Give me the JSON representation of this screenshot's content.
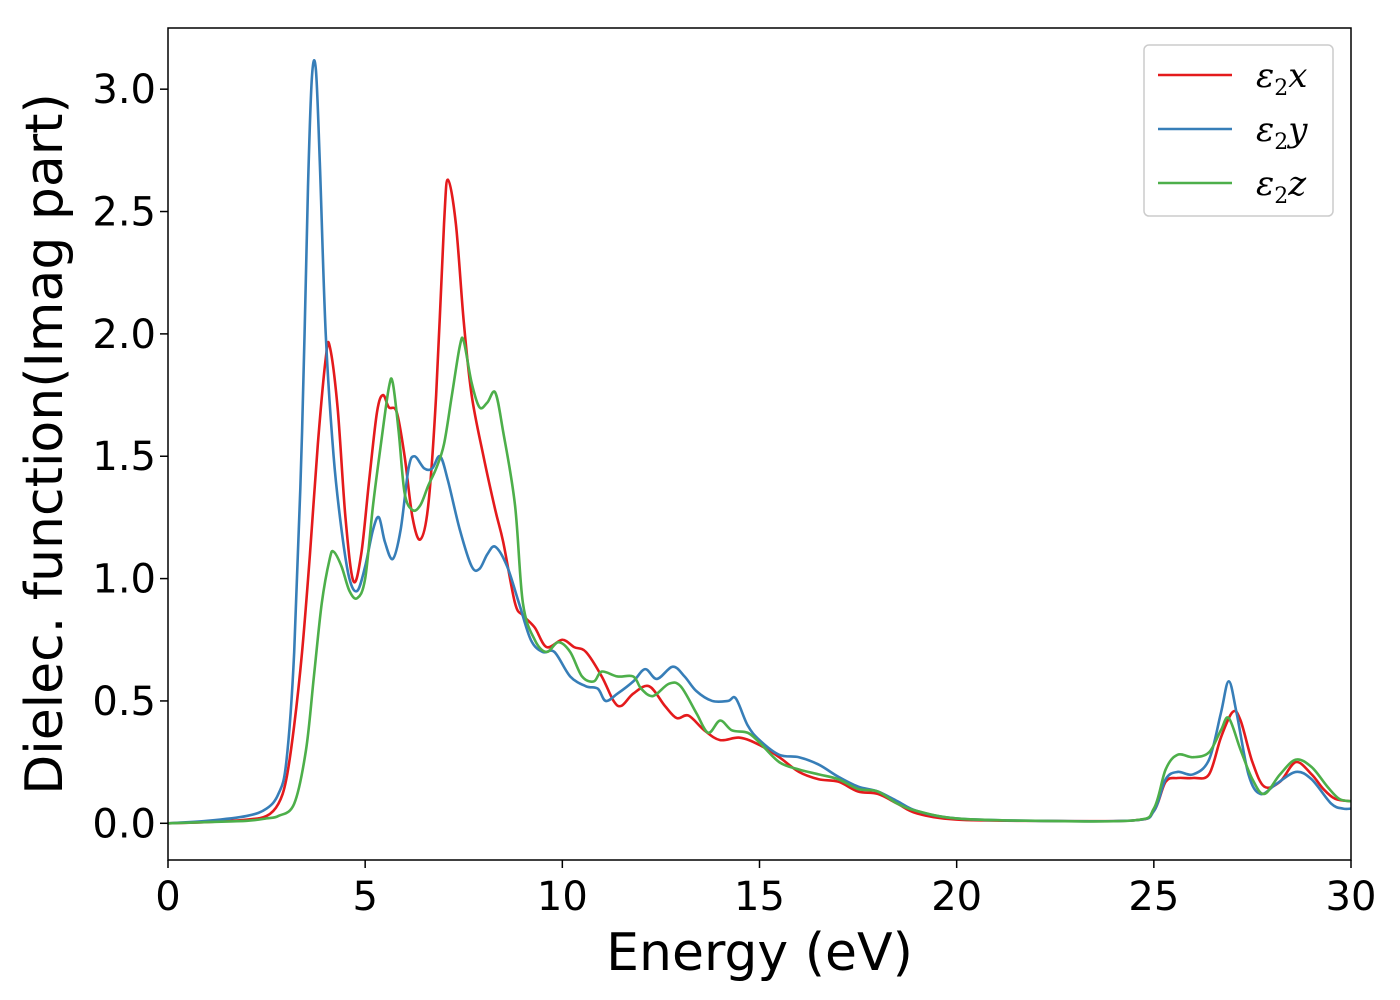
{
  "chart_data": {
    "type": "line",
    "xlabel": "Energy (eV)",
    "ylabel": "Dielec. function(Imag part)",
    "xlim": [
      0,
      30
    ],
    "ylim": [
      -0.15,
      3.25
    ],
    "xticks": [
      0,
      5,
      10,
      15,
      20,
      25,
      30
    ],
    "xtick_labels": [
      "0",
      "5",
      "10",
      "15",
      "20",
      "25",
      "30"
    ],
    "yticks": [
      0.0,
      0.5,
      1.0,
      1.5,
      2.0,
      2.5,
      3.0
    ],
    "ytick_labels": [
      "0.0",
      "0.5",
      "1.0",
      "1.5",
      "2.0",
      "2.5",
      "3.0"
    ],
    "grid": false,
    "legend": {
      "position": "top-right"
    },
    "series": [
      {
        "name": "ε2x",
        "base": "ε",
        "sub": "2",
        "comp": "x",
        "color": "#e41a1c",
        "points": [
          [
            0,
            0.0
          ],
          [
            1,
            0.005
          ],
          [
            2,
            0.015
          ],
          [
            2.5,
            0.03
          ],
          [
            2.8,
            0.08
          ],
          [
            3.0,
            0.18
          ],
          [
            3.2,
            0.4
          ],
          [
            3.4,
            0.7
          ],
          [
            3.6,
            1.1
          ],
          [
            3.8,
            1.55
          ],
          [
            4.0,
            1.9
          ],
          [
            4.1,
            1.95
          ],
          [
            4.3,
            1.7
          ],
          [
            4.5,
            1.25
          ],
          [
            4.7,
            0.99
          ],
          [
            4.9,
            1.1
          ],
          [
            5.1,
            1.4
          ],
          [
            5.3,
            1.68
          ],
          [
            5.45,
            1.75
          ],
          [
            5.6,
            1.7
          ],
          [
            5.8,
            1.68
          ],
          [
            6.0,
            1.5
          ],
          [
            6.2,
            1.25
          ],
          [
            6.4,
            1.16
          ],
          [
            6.6,
            1.3
          ],
          [
            6.8,
            1.75
          ],
          [
            7.0,
            2.45
          ],
          [
            7.1,
            2.63
          ],
          [
            7.3,
            2.45
          ],
          [
            7.5,
            2.05
          ],
          [
            7.7,
            1.75
          ],
          [
            8.0,
            1.5
          ],
          [
            8.3,
            1.28
          ],
          [
            8.5,
            1.15
          ],
          [
            8.8,
            0.9
          ],
          [
            9.0,
            0.85
          ],
          [
            9.3,
            0.8
          ],
          [
            9.6,
            0.72
          ],
          [
            10.0,
            0.75
          ],
          [
            10.3,
            0.72
          ],
          [
            10.6,
            0.7
          ],
          [
            11.0,
            0.6
          ],
          [
            11.3,
            0.5
          ],
          [
            11.5,
            0.48
          ],
          [
            11.8,
            0.53
          ],
          [
            12.2,
            0.56
          ],
          [
            12.6,
            0.48
          ],
          [
            12.9,
            0.43
          ],
          [
            13.2,
            0.44
          ],
          [
            13.6,
            0.38
          ],
          [
            14.0,
            0.34
          ],
          [
            14.5,
            0.35
          ],
          [
            15.0,
            0.32
          ],
          [
            15.5,
            0.27
          ],
          [
            16.0,
            0.21
          ],
          [
            16.5,
            0.18
          ],
          [
            17.0,
            0.17
          ],
          [
            17.5,
            0.13
          ],
          [
            18.0,
            0.12
          ],
          [
            18.5,
            0.08
          ],
          [
            19.0,
            0.04
          ],
          [
            20.0,
            0.015
          ],
          [
            22.0,
            0.01
          ],
          [
            24.5,
            0.012
          ],
          [
            25.0,
            0.05
          ],
          [
            25.3,
            0.17
          ],
          [
            25.6,
            0.185
          ],
          [
            26.0,
            0.185
          ],
          [
            26.4,
            0.2
          ],
          [
            26.7,
            0.35
          ],
          [
            27.0,
            0.455
          ],
          [
            27.2,
            0.42
          ],
          [
            27.5,
            0.25
          ],
          [
            27.8,
            0.15
          ],
          [
            28.2,
            0.17
          ],
          [
            28.6,
            0.25
          ],
          [
            29.0,
            0.2
          ],
          [
            29.3,
            0.14
          ],
          [
            29.6,
            0.1
          ],
          [
            30.0,
            0.09
          ]
        ]
      },
      {
        "name": "ε2y",
        "base": "ε",
        "sub": "2",
        "comp": "y",
        "color": "#377eb8",
        "points": [
          [
            0,
            0.0
          ],
          [
            1,
            0.01
          ],
          [
            2,
            0.03
          ],
          [
            2.5,
            0.06
          ],
          [
            2.8,
            0.12
          ],
          [
            3.0,
            0.25
          ],
          [
            3.2,
            0.7
          ],
          [
            3.4,
            1.6
          ],
          [
            3.55,
            2.6
          ],
          [
            3.65,
            3.05
          ],
          [
            3.75,
            3.08
          ],
          [
            3.85,
            2.7
          ],
          [
            4.0,
            2.0
          ],
          [
            4.2,
            1.5
          ],
          [
            4.4,
            1.2
          ],
          [
            4.6,
            1.0
          ],
          [
            4.8,
            0.95
          ],
          [
            5.0,
            1.05
          ],
          [
            5.2,
            1.2
          ],
          [
            5.35,
            1.25
          ],
          [
            5.5,
            1.15
          ],
          [
            5.7,
            1.08
          ],
          [
            5.9,
            1.2
          ],
          [
            6.1,
            1.45
          ],
          [
            6.25,
            1.5
          ],
          [
            6.5,
            1.45
          ],
          [
            6.7,
            1.45
          ],
          [
            6.9,
            1.5
          ],
          [
            7.1,
            1.4
          ],
          [
            7.4,
            1.2
          ],
          [
            7.7,
            1.05
          ],
          [
            7.9,
            1.04
          ],
          [
            8.1,
            1.1
          ],
          [
            8.3,
            1.13
          ],
          [
            8.6,
            1.05
          ],
          [
            8.9,
            0.9
          ],
          [
            9.2,
            0.75
          ],
          [
            9.5,
            0.7
          ],
          [
            9.8,
            0.7
          ],
          [
            10.2,
            0.6
          ],
          [
            10.6,
            0.56
          ],
          [
            10.9,
            0.55
          ],
          [
            11.1,
            0.5
          ],
          [
            11.4,
            0.53
          ],
          [
            11.8,
            0.58
          ],
          [
            12.1,
            0.63
          ],
          [
            12.4,
            0.59
          ],
          [
            12.8,
            0.64
          ],
          [
            13.1,
            0.6
          ],
          [
            13.4,
            0.54
          ],
          [
            13.8,
            0.5
          ],
          [
            14.2,
            0.5
          ],
          [
            14.4,
            0.51
          ],
          [
            14.7,
            0.4
          ],
          [
            15.0,
            0.34
          ],
          [
            15.5,
            0.28
          ],
          [
            16.0,
            0.27
          ],
          [
            16.5,
            0.24
          ],
          [
            17.0,
            0.19
          ],
          [
            17.5,
            0.15
          ],
          [
            18.0,
            0.13
          ],
          [
            18.5,
            0.09
          ],
          [
            19.0,
            0.05
          ],
          [
            20.0,
            0.02
          ],
          [
            22.0,
            0.01
          ],
          [
            24.5,
            0.012
          ],
          [
            25.0,
            0.05
          ],
          [
            25.3,
            0.18
          ],
          [
            25.6,
            0.21
          ],
          [
            26.0,
            0.2
          ],
          [
            26.4,
            0.26
          ],
          [
            26.7,
            0.45
          ],
          [
            26.9,
            0.58
          ],
          [
            27.1,
            0.45
          ],
          [
            27.4,
            0.2
          ],
          [
            27.7,
            0.12
          ],
          [
            28.1,
            0.16
          ],
          [
            28.6,
            0.21
          ],
          [
            29.0,
            0.18
          ],
          [
            29.5,
            0.08
          ],
          [
            29.8,
            0.06
          ],
          [
            30.0,
            0.06
          ]
        ]
      },
      {
        "name": "ε2z",
        "base": "ε",
        "sub": "2",
        "comp": "z",
        "color": "#4daf4a",
        "points": [
          [
            0,
            0.0
          ],
          [
            1,
            0.005
          ],
          [
            2,
            0.01
          ],
          [
            2.5,
            0.02
          ],
          [
            2.8,
            0.03
          ],
          [
            3.2,
            0.08
          ],
          [
            3.5,
            0.3
          ],
          [
            3.7,
            0.6
          ],
          [
            3.9,
            0.9
          ],
          [
            4.1,
            1.08
          ],
          [
            4.2,
            1.11
          ],
          [
            4.4,
            1.05
          ],
          [
            4.6,
            0.95
          ],
          [
            4.8,
            0.92
          ],
          [
            5.0,
            1.0
          ],
          [
            5.2,
            1.3
          ],
          [
            5.4,
            1.55
          ],
          [
            5.6,
            1.78
          ],
          [
            5.7,
            1.8
          ],
          [
            5.85,
            1.6
          ],
          [
            6.0,
            1.35
          ],
          [
            6.2,
            1.28
          ],
          [
            6.4,
            1.3
          ],
          [
            6.6,
            1.38
          ],
          [
            6.8,
            1.45
          ],
          [
            7.0,
            1.55
          ],
          [
            7.2,
            1.75
          ],
          [
            7.4,
            1.95
          ],
          [
            7.5,
            1.97
          ],
          [
            7.7,
            1.8
          ],
          [
            7.9,
            1.7
          ],
          [
            8.1,
            1.72
          ],
          [
            8.3,
            1.76
          ],
          [
            8.5,
            1.6
          ],
          [
            8.8,
            1.3
          ],
          [
            9.0,
            0.9
          ],
          [
            9.3,
            0.75
          ],
          [
            9.6,
            0.7
          ],
          [
            9.9,
            0.74
          ],
          [
            10.2,
            0.7
          ],
          [
            10.5,
            0.6
          ],
          [
            10.8,
            0.58
          ],
          [
            11.0,
            0.62
          ],
          [
            11.4,
            0.6
          ],
          [
            11.8,
            0.6
          ],
          [
            12.0,
            0.55
          ],
          [
            12.3,
            0.52
          ],
          [
            12.7,
            0.57
          ],
          [
            13.0,
            0.56
          ],
          [
            13.4,
            0.45
          ],
          [
            13.7,
            0.37
          ],
          [
            14.0,
            0.42
          ],
          [
            14.3,
            0.38
          ],
          [
            14.7,
            0.37
          ],
          [
            15.0,
            0.33
          ],
          [
            15.5,
            0.25
          ],
          [
            16.0,
            0.22
          ],
          [
            16.5,
            0.2
          ],
          [
            17.0,
            0.18
          ],
          [
            17.5,
            0.14
          ],
          [
            18.0,
            0.13
          ],
          [
            18.5,
            0.08
          ],
          [
            19.0,
            0.05
          ],
          [
            20.0,
            0.02
          ],
          [
            22.0,
            0.01
          ],
          [
            24.5,
            0.012
          ],
          [
            25.0,
            0.06
          ],
          [
            25.3,
            0.22
          ],
          [
            25.6,
            0.28
          ],
          [
            26.0,
            0.27
          ],
          [
            26.4,
            0.29
          ],
          [
            26.7,
            0.38
          ],
          [
            26.9,
            0.43
          ],
          [
            27.2,
            0.3
          ],
          [
            27.5,
            0.18
          ],
          [
            27.8,
            0.12
          ],
          [
            28.2,
            0.2
          ],
          [
            28.6,
            0.26
          ],
          [
            29.0,
            0.23
          ],
          [
            29.4,
            0.15
          ],
          [
            29.7,
            0.1
          ],
          [
            30.0,
            0.09
          ]
        ]
      }
    ]
  }
}
